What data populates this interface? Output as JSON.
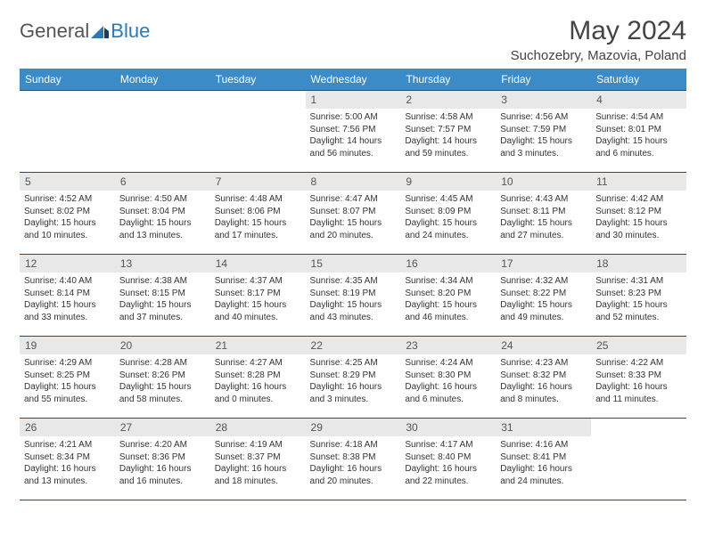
{
  "brand": {
    "general": "General",
    "blue": "Blue"
  },
  "title": "May 2024",
  "location": "Suchozebry, Mazovia, Poland",
  "colors": {
    "header_bg": "#3b8bc9",
    "header_text": "#ffffff",
    "daynum_bg": "#e8e8e8",
    "border": "#1f4e79",
    "brand_blue": "#2a7ab9",
    "brand_gray": "#555555"
  },
  "day_headers": [
    "Sunday",
    "Monday",
    "Tuesday",
    "Wednesday",
    "Thursday",
    "Friday",
    "Saturday"
  ],
  "weeks": [
    [
      {
        "n": "",
        "sr": "",
        "ss": "",
        "dl": ""
      },
      {
        "n": "",
        "sr": "",
        "ss": "",
        "dl": ""
      },
      {
        "n": "",
        "sr": "",
        "ss": "",
        "dl": ""
      },
      {
        "n": "1",
        "sr": "Sunrise: 5:00 AM",
        "ss": "Sunset: 7:56 PM",
        "dl": "Daylight: 14 hours and 56 minutes."
      },
      {
        "n": "2",
        "sr": "Sunrise: 4:58 AM",
        "ss": "Sunset: 7:57 PM",
        "dl": "Daylight: 14 hours and 59 minutes."
      },
      {
        "n": "3",
        "sr": "Sunrise: 4:56 AM",
        "ss": "Sunset: 7:59 PM",
        "dl": "Daylight: 15 hours and 3 minutes."
      },
      {
        "n": "4",
        "sr": "Sunrise: 4:54 AM",
        "ss": "Sunset: 8:01 PM",
        "dl": "Daylight: 15 hours and 6 minutes."
      }
    ],
    [
      {
        "n": "5",
        "sr": "Sunrise: 4:52 AM",
        "ss": "Sunset: 8:02 PM",
        "dl": "Daylight: 15 hours and 10 minutes."
      },
      {
        "n": "6",
        "sr": "Sunrise: 4:50 AM",
        "ss": "Sunset: 8:04 PM",
        "dl": "Daylight: 15 hours and 13 minutes."
      },
      {
        "n": "7",
        "sr": "Sunrise: 4:48 AM",
        "ss": "Sunset: 8:06 PM",
        "dl": "Daylight: 15 hours and 17 minutes."
      },
      {
        "n": "8",
        "sr": "Sunrise: 4:47 AM",
        "ss": "Sunset: 8:07 PM",
        "dl": "Daylight: 15 hours and 20 minutes."
      },
      {
        "n": "9",
        "sr": "Sunrise: 4:45 AM",
        "ss": "Sunset: 8:09 PM",
        "dl": "Daylight: 15 hours and 24 minutes."
      },
      {
        "n": "10",
        "sr": "Sunrise: 4:43 AM",
        "ss": "Sunset: 8:11 PM",
        "dl": "Daylight: 15 hours and 27 minutes."
      },
      {
        "n": "11",
        "sr": "Sunrise: 4:42 AM",
        "ss": "Sunset: 8:12 PM",
        "dl": "Daylight: 15 hours and 30 minutes."
      }
    ],
    [
      {
        "n": "12",
        "sr": "Sunrise: 4:40 AM",
        "ss": "Sunset: 8:14 PM",
        "dl": "Daylight: 15 hours and 33 minutes."
      },
      {
        "n": "13",
        "sr": "Sunrise: 4:38 AM",
        "ss": "Sunset: 8:15 PM",
        "dl": "Daylight: 15 hours and 37 minutes."
      },
      {
        "n": "14",
        "sr": "Sunrise: 4:37 AM",
        "ss": "Sunset: 8:17 PM",
        "dl": "Daylight: 15 hours and 40 minutes."
      },
      {
        "n": "15",
        "sr": "Sunrise: 4:35 AM",
        "ss": "Sunset: 8:19 PM",
        "dl": "Daylight: 15 hours and 43 minutes."
      },
      {
        "n": "16",
        "sr": "Sunrise: 4:34 AM",
        "ss": "Sunset: 8:20 PM",
        "dl": "Daylight: 15 hours and 46 minutes."
      },
      {
        "n": "17",
        "sr": "Sunrise: 4:32 AM",
        "ss": "Sunset: 8:22 PM",
        "dl": "Daylight: 15 hours and 49 minutes."
      },
      {
        "n": "18",
        "sr": "Sunrise: 4:31 AM",
        "ss": "Sunset: 8:23 PM",
        "dl": "Daylight: 15 hours and 52 minutes."
      }
    ],
    [
      {
        "n": "19",
        "sr": "Sunrise: 4:29 AM",
        "ss": "Sunset: 8:25 PM",
        "dl": "Daylight: 15 hours and 55 minutes."
      },
      {
        "n": "20",
        "sr": "Sunrise: 4:28 AM",
        "ss": "Sunset: 8:26 PM",
        "dl": "Daylight: 15 hours and 58 minutes."
      },
      {
        "n": "21",
        "sr": "Sunrise: 4:27 AM",
        "ss": "Sunset: 8:28 PM",
        "dl": "Daylight: 16 hours and 0 minutes."
      },
      {
        "n": "22",
        "sr": "Sunrise: 4:25 AM",
        "ss": "Sunset: 8:29 PM",
        "dl": "Daylight: 16 hours and 3 minutes."
      },
      {
        "n": "23",
        "sr": "Sunrise: 4:24 AM",
        "ss": "Sunset: 8:30 PM",
        "dl": "Daylight: 16 hours and 6 minutes."
      },
      {
        "n": "24",
        "sr": "Sunrise: 4:23 AM",
        "ss": "Sunset: 8:32 PM",
        "dl": "Daylight: 16 hours and 8 minutes."
      },
      {
        "n": "25",
        "sr": "Sunrise: 4:22 AM",
        "ss": "Sunset: 8:33 PM",
        "dl": "Daylight: 16 hours and 11 minutes."
      }
    ],
    [
      {
        "n": "26",
        "sr": "Sunrise: 4:21 AM",
        "ss": "Sunset: 8:34 PM",
        "dl": "Daylight: 16 hours and 13 minutes."
      },
      {
        "n": "27",
        "sr": "Sunrise: 4:20 AM",
        "ss": "Sunset: 8:36 PM",
        "dl": "Daylight: 16 hours and 16 minutes."
      },
      {
        "n": "28",
        "sr": "Sunrise: 4:19 AM",
        "ss": "Sunset: 8:37 PM",
        "dl": "Daylight: 16 hours and 18 minutes."
      },
      {
        "n": "29",
        "sr": "Sunrise: 4:18 AM",
        "ss": "Sunset: 8:38 PM",
        "dl": "Daylight: 16 hours and 20 minutes."
      },
      {
        "n": "30",
        "sr": "Sunrise: 4:17 AM",
        "ss": "Sunset: 8:40 PM",
        "dl": "Daylight: 16 hours and 22 minutes."
      },
      {
        "n": "31",
        "sr": "Sunrise: 4:16 AM",
        "ss": "Sunset: 8:41 PM",
        "dl": "Daylight: 16 hours and 24 minutes."
      },
      {
        "n": "",
        "sr": "",
        "ss": "",
        "dl": ""
      }
    ]
  ]
}
